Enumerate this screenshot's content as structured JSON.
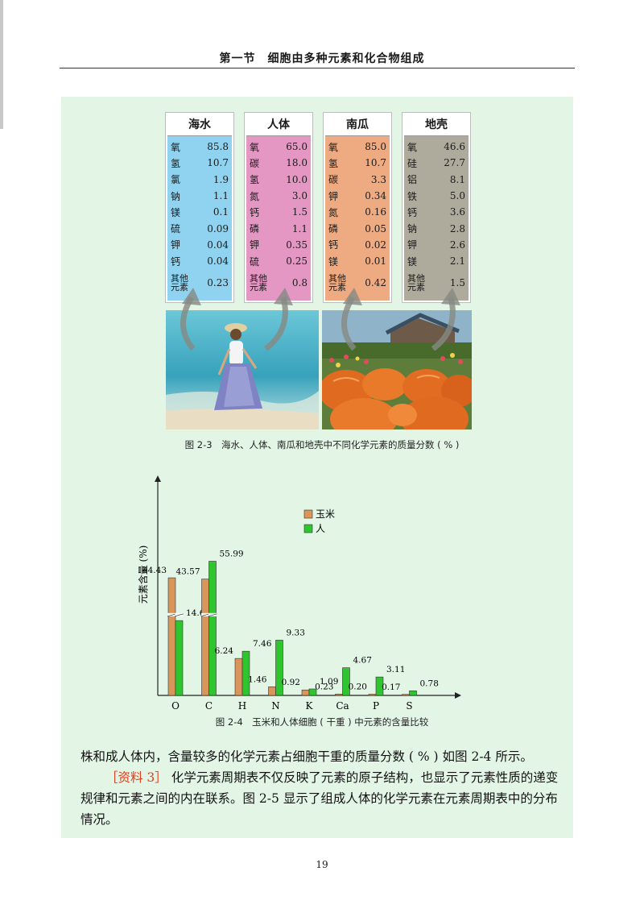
{
  "header": {
    "title": "第一节　细胞由多种元素和化合物组成"
  },
  "figure_2_3": {
    "caption": "图 2-3　海水、人体、南瓜和地壳中不同化学元素的质量分数 ( % )",
    "colors": {
      "seawater": "#8fd3f0",
      "human": "#e597c4",
      "pumpkin": "#eeaa80",
      "crust": "#aeaa9c"
    },
    "tables": [
      {
        "title": "海水",
        "rows": [
          {
            "element": "氧",
            "value": "85.8"
          },
          {
            "element": "氢",
            "value": "10.7"
          },
          {
            "element": "氯",
            "value": "1.9"
          },
          {
            "element": "钠",
            "value": "1.1"
          },
          {
            "element": "镁",
            "value": "0.1"
          },
          {
            "element": "硫",
            "value": "0.09"
          },
          {
            "element": "钾",
            "value": "0.04"
          },
          {
            "element": "钙",
            "value": "0.04"
          },
          {
            "element": "其他元素",
            "value": "0.23"
          }
        ]
      },
      {
        "title": "人体",
        "rows": [
          {
            "element": "氧",
            "value": "65.0"
          },
          {
            "element": "碳",
            "value": "18.0"
          },
          {
            "element": "氢",
            "value": "10.0"
          },
          {
            "element": "氮",
            "value": "3.0"
          },
          {
            "element": "钙",
            "value": "1.5"
          },
          {
            "element": "磷",
            "value": "1.1"
          },
          {
            "element": "钾",
            "value": "0.35"
          },
          {
            "element": "硫",
            "value": "0.25"
          },
          {
            "element": "其他元素",
            "value": "0.8"
          }
        ]
      },
      {
        "title": "南瓜",
        "rows": [
          {
            "element": "氧",
            "value": "85.0"
          },
          {
            "element": "氢",
            "value": "10.7"
          },
          {
            "element": "碳",
            "value": "3.3"
          },
          {
            "element": "钾",
            "value": "0.34"
          },
          {
            "element": "氮",
            "value": "0.16"
          },
          {
            "element": "磷",
            "value": "0.05"
          },
          {
            "element": "钙",
            "value": "0.02"
          },
          {
            "element": "镁",
            "value": "0.01"
          },
          {
            "element": "其他元素",
            "value": "0.42"
          }
        ]
      },
      {
        "title": "地壳",
        "rows": [
          {
            "element": "氧",
            "value": "46.6"
          },
          {
            "element": "硅",
            "value": "27.7"
          },
          {
            "element": "铝",
            "value": "8.1"
          },
          {
            "element": "铁",
            "value": "5.0"
          },
          {
            "element": "钙",
            "value": "3.6"
          },
          {
            "element": "钠",
            "value": "2.8"
          },
          {
            "element": "钾",
            "value": "2.6"
          },
          {
            "element": "镁",
            "value": "2.1"
          },
          {
            "element": "其他元素",
            "value": "1.5"
          }
        ]
      }
    ]
  },
  "figure_2_4": {
    "caption": "图 2-4　玉米和人体细胞 ( 干重 ) 中元素的含量比较"
  },
  "chart_data": {
    "type": "bar",
    "categories": [
      "O",
      "C",
      "H",
      "N",
      "K",
      "Ca",
      "P",
      "S"
    ],
    "series": [
      {
        "name": "玉米",
        "color": "#d9955a",
        "values": [
          44.43,
          43.57,
          6.24,
          1.46,
          0.92,
          0.23,
          0.2,
          0.17
        ]
      },
      {
        "name": "人",
        "color": "#2ec52e",
        "values": [
          14.62,
          55.99,
          7.46,
          9.33,
          1.09,
          4.67,
          3.11,
          0.78
        ]
      }
    ],
    "value_labels": [
      [
        "44.43",
        "43.57",
        "6.24",
        "1.46",
        "0.92",
        "0.23",
        "0.20",
        "0.17"
      ],
      [
        "14.62",
        "55.99",
        "7.46",
        "9.33",
        "1.09",
        "4.67",
        "3.11",
        "0.78"
      ]
    ],
    "ylabel": "元素含量 (%)",
    "legend_position": "top-right",
    "axis_break": true
  },
  "body": {
    "para1": "株和成人体内，含量较多的化学元素占细胞干重的质量分数 ( % ) 如图 2-4 所示。",
    "ref_tag": "［资料 3］",
    "para2": "化学元素周期表不仅反映了元素的原子结构，也显示了元素性质的递变规律和元素之间的内在联系。图 2-5 显示了组成人体的化学元素在元素周期表中的分布情况。"
  },
  "page_number": "19"
}
